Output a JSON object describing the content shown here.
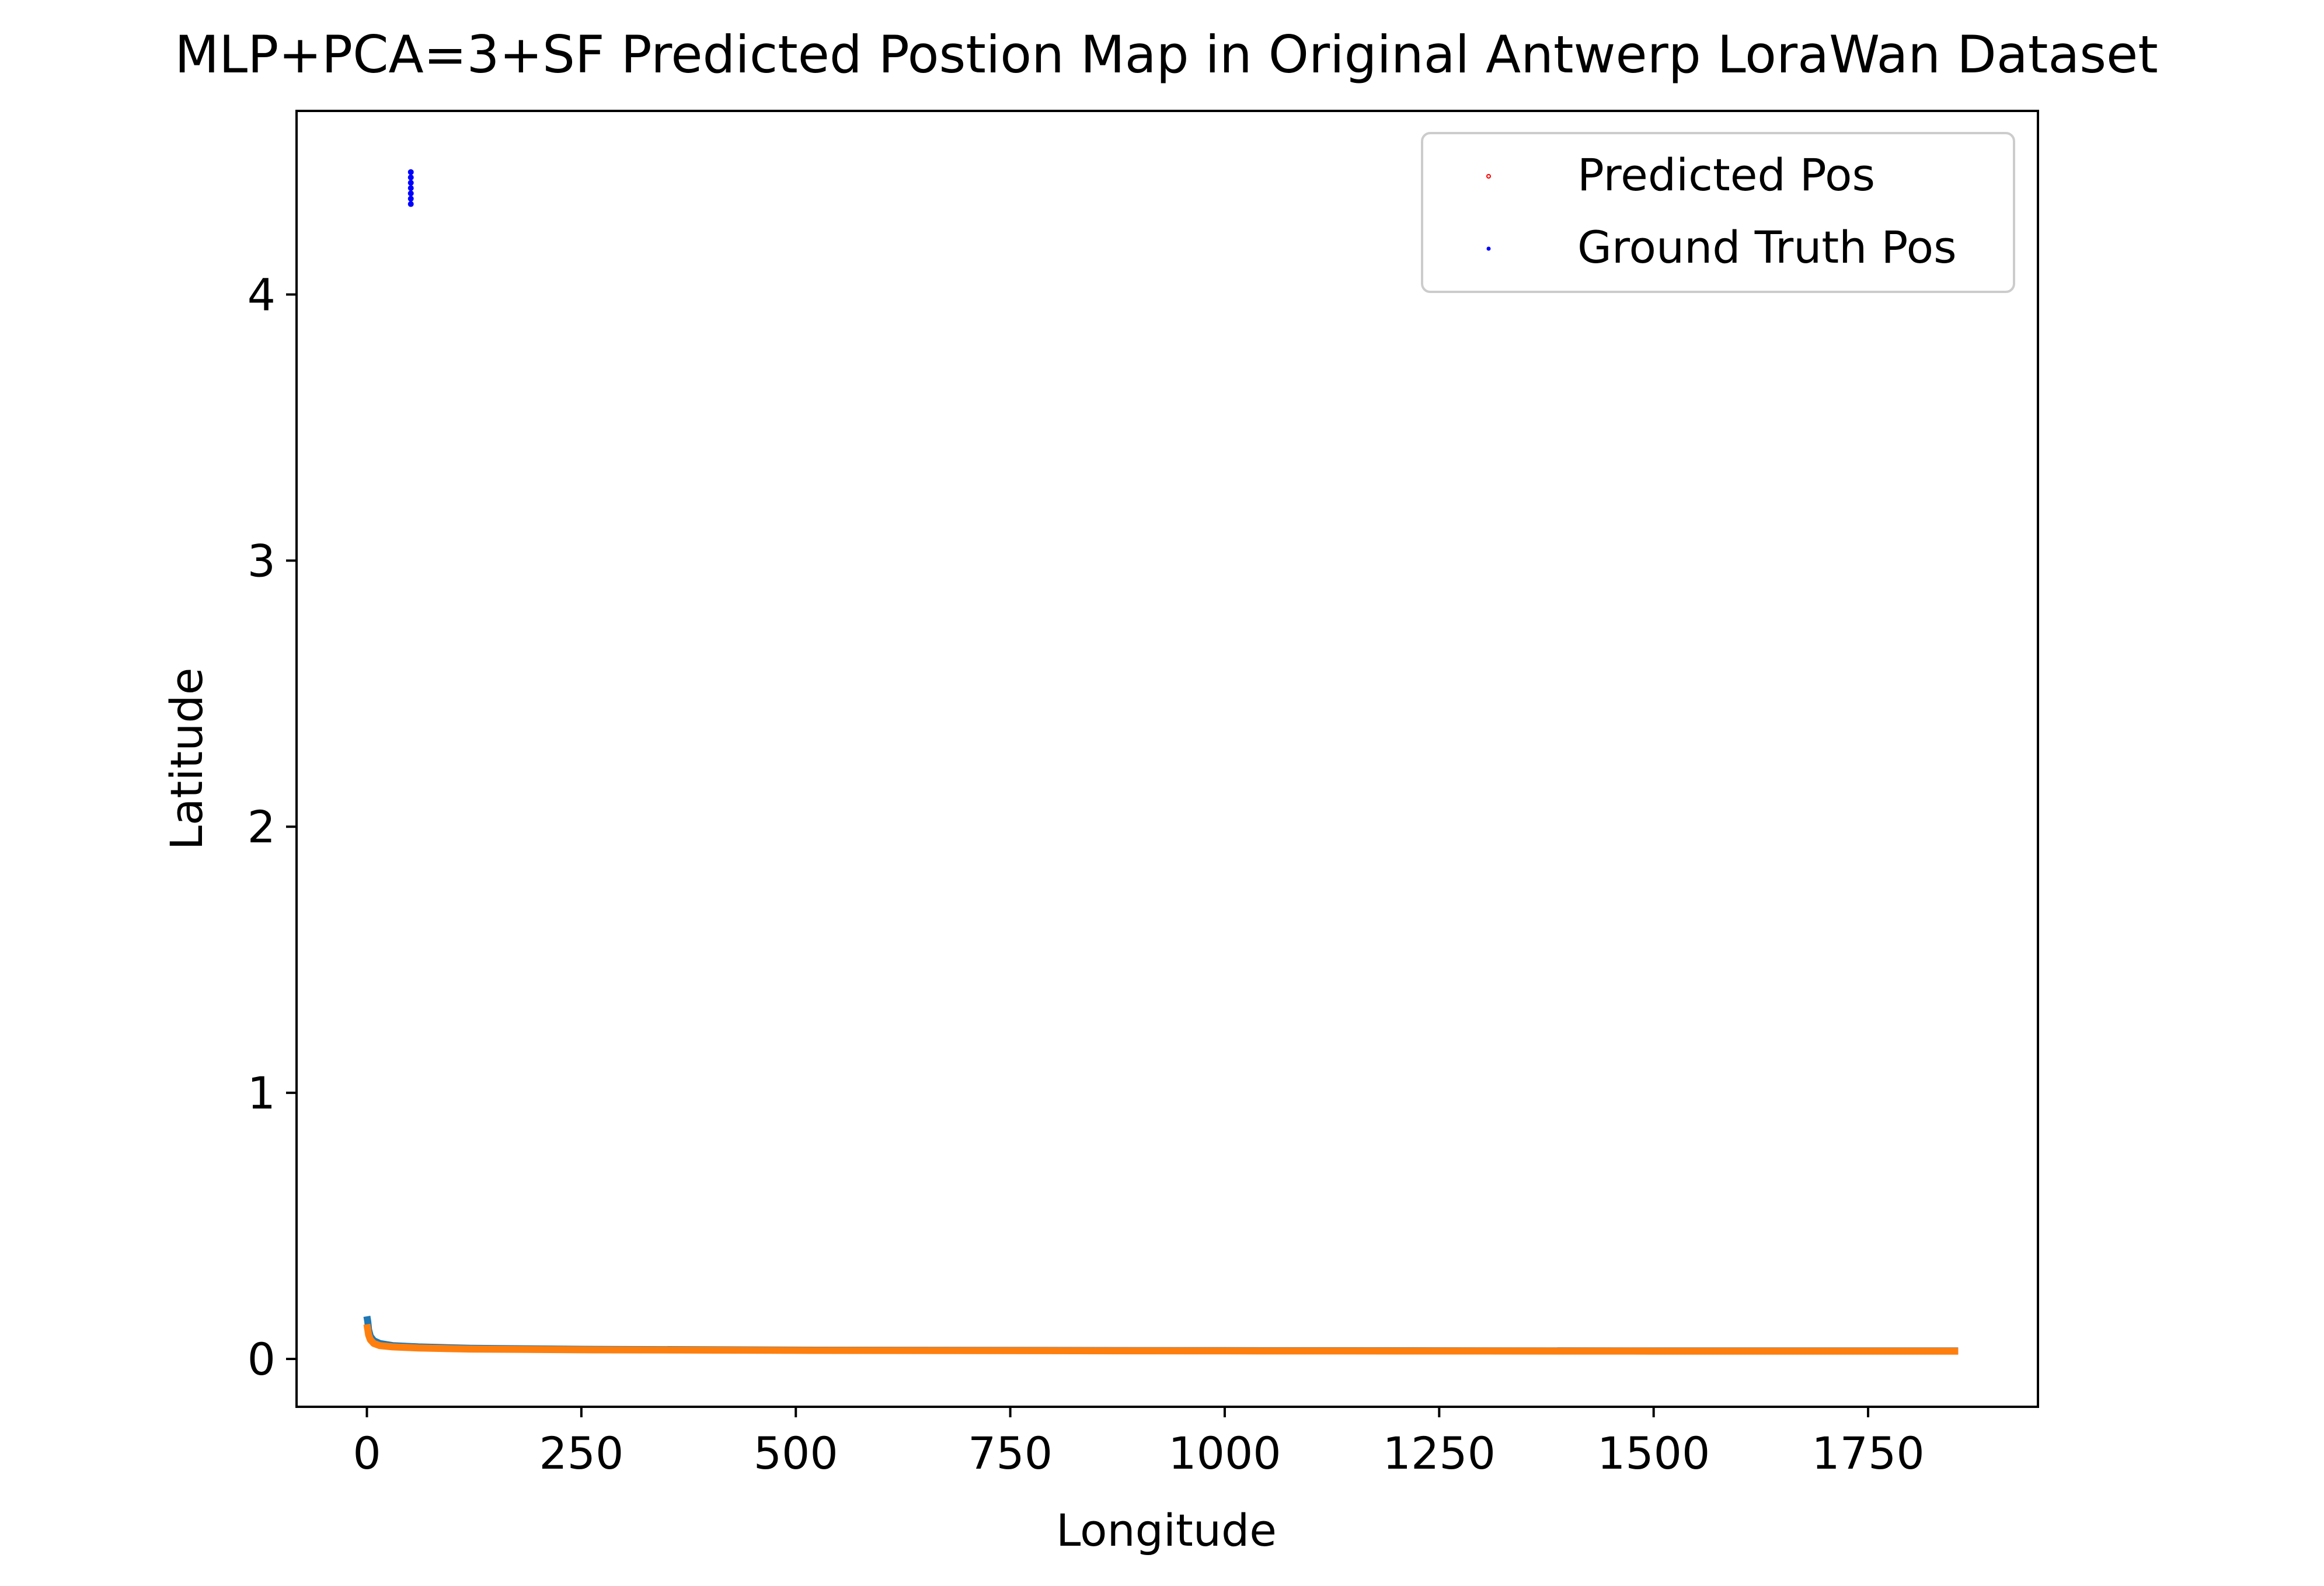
{
  "chart_data": {
    "type": "scatter",
    "title": "MLP+PCA=3+SF Predicted Postion Map in Original Antwerp LoraWan Dataset",
    "xlabel": "Longitude",
    "ylabel": "Latitude",
    "xlim": [
      -82,
      1948
    ],
    "ylim": [
      -0.18,
      4.69
    ],
    "x_ticks": [
      0,
      250,
      500,
      750,
      1000,
      1250,
      1500,
      1750
    ],
    "x_tick_labels": [
      "0",
      "250",
      "500",
      "750",
      "1000",
      "1250",
      "1500",
      "1750"
    ],
    "y_ticks": [
      0,
      1,
      2,
      3,
      4
    ],
    "y_tick_labels": [
      "0",
      "1",
      "2",
      "3",
      "4"
    ],
    "grid": false,
    "legend_position": "top-right",
    "legend": [
      {
        "label": "Predicted Pos",
        "color": "#ff0000",
        "marker": "open-circle"
      },
      {
        "label": "Ground Truth Pos",
        "color": "#0000ff",
        "marker": "point"
      }
    ],
    "series": [
      {
        "name": "Ground Truth Pos",
        "color": "#0000ff",
        "style": "points",
        "points": [
          [
            51.2,
            4.34
          ],
          [
            51.2,
            4.36
          ],
          [
            51.2,
            4.38
          ],
          [
            51.2,
            4.4
          ],
          [
            51.2,
            4.42
          ],
          [
            51.2,
            4.44
          ],
          [
            51.2,
            4.46
          ]
        ]
      },
      {
        "color": "#1f77b4",
        "style": "line",
        "points": [
          [
            0,
            0.16
          ],
          [
            1,
            0.14
          ],
          [
            2,
            0.11
          ],
          [
            4,
            0.085
          ],
          [
            8,
            0.068
          ],
          [
            15,
            0.058
          ],
          [
            30,
            0.05
          ],
          [
            60,
            0.045
          ],
          [
            120,
            0.04
          ],
          [
            250,
            0.036
          ],
          [
            500,
            0.033
          ],
          [
            1000,
            0.031
          ],
          [
            1500,
            0.03
          ],
          [
            1855,
            0.03
          ]
        ]
      },
      {
        "color": "#ff7f0e",
        "style": "line",
        "points": [
          [
            0,
            0.13
          ],
          [
            1,
            0.11
          ],
          [
            2,
            0.09
          ],
          [
            4,
            0.072
          ],
          [
            8,
            0.058
          ],
          [
            15,
            0.05
          ],
          [
            30,
            0.045
          ],
          [
            60,
            0.041
          ],
          [
            120,
            0.037
          ],
          [
            250,
            0.034
          ],
          [
            500,
            0.032
          ],
          [
            1000,
            0.03
          ],
          [
            1500,
            0.029
          ],
          [
            1855,
            0.029
          ]
        ]
      }
    ]
  }
}
